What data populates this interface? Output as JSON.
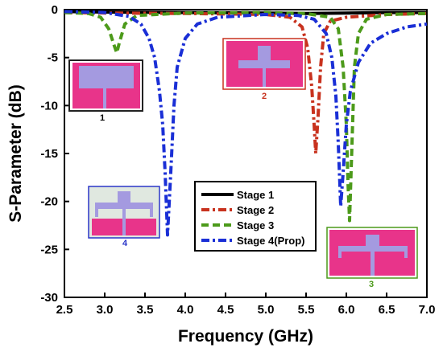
{
  "chart_data": {
    "type": "line",
    "title": "",
    "xlabel": "Frequency (GHz)",
    "ylabel": "S-Parameter (dB)",
    "xlim": [
      2.5,
      7.0
    ],
    "ylim": [
      -30,
      0
    ],
    "xticks": [
      "2.5",
      "3.0",
      "3.5",
      "4.0",
      "4.5",
      "5.0",
      "5.5",
      "6.0",
      "6.5",
      "7.0"
    ],
    "yticks": [
      "0",
      "-5",
      "-10",
      "-15",
      "-20",
      "-25",
      "-30"
    ],
    "grid": false,
    "legend_position": "lower-center",
    "series": [
      {
        "name": "Stage 1",
        "color": "#000000",
        "style": "solid",
        "points": [
          [
            2.5,
            -0.2
          ],
          [
            3.0,
            -0.25
          ],
          [
            4.0,
            -0.3
          ],
          [
            5.0,
            -0.35
          ],
          [
            5.5,
            -0.4
          ],
          [
            6.0,
            -0.35
          ],
          [
            6.5,
            -0.3
          ],
          [
            7.0,
            -0.3
          ]
        ]
      },
      {
        "name": "Stage 2",
        "color": "#c8321e",
        "style": "dash-dot",
        "points": [
          [
            2.5,
            -0.3
          ],
          [
            3.0,
            -0.35
          ],
          [
            4.0,
            -0.4
          ],
          [
            5.0,
            -0.5
          ],
          [
            5.3,
            -0.8
          ],
          [
            5.45,
            -1.8
          ],
          [
            5.52,
            -4.0
          ],
          [
            5.57,
            -8.0
          ],
          [
            5.6,
            -12.0
          ],
          [
            5.62,
            -15.0
          ],
          [
            5.65,
            -11.0
          ],
          [
            5.68,
            -6.0
          ],
          [
            5.72,
            -2.5
          ],
          [
            5.8,
            -1.2
          ],
          [
            6.0,
            -0.8
          ],
          [
            6.5,
            -0.5
          ],
          [
            7.0,
            -0.4
          ]
        ]
      },
      {
        "name": "Stage 3",
        "color": "#4c9a1a",
        "style": "dash",
        "points": [
          [
            2.5,
            -0.3
          ],
          [
            2.8,
            -0.4
          ],
          [
            2.95,
            -0.8
          ],
          [
            3.05,
            -2.0
          ],
          [
            3.12,
            -3.8
          ],
          [
            3.15,
            -4.5
          ],
          [
            3.18,
            -3.5
          ],
          [
            3.25,
            -1.5
          ],
          [
            3.4,
            -0.6
          ],
          [
            4.0,
            -0.35
          ],
          [
            5.0,
            -0.3
          ],
          [
            5.5,
            -0.4
          ],
          [
            5.8,
            -0.8
          ],
          [
            5.9,
            -2.0
          ],
          [
            5.96,
            -6.0
          ],
          [
            6.0,
            -12.0
          ],
          [
            6.02,
            -18.0
          ],
          [
            6.04,
            -22.0
          ],
          [
            6.07,
            -14.0
          ],
          [
            6.1,
            -6.0
          ],
          [
            6.15,
            -2.5
          ],
          [
            6.25,
            -1.0
          ],
          [
            6.5,
            -0.5
          ],
          [
            7.0,
            -0.4
          ]
        ]
      },
      {
        "name": "Stage 4(Prop)",
        "color": "#1a2fd6",
        "style": "dash-dot",
        "points": [
          [
            2.5,
            -0.2
          ],
          [
            3.0,
            -0.3
          ],
          [
            3.3,
            -0.7
          ],
          [
            3.45,
            -1.5
          ],
          [
            3.55,
            -3.0
          ],
          [
            3.62,
            -5.0
          ],
          [
            3.68,
            -8.5
          ],
          [
            3.72,
            -12.0
          ],
          [
            3.75,
            -17.0
          ],
          [
            3.78,
            -23.5
          ],
          [
            3.82,
            -17.0
          ],
          [
            3.86,
            -10.0
          ],
          [
            3.9,
            -6.0
          ],
          [
            4.0,
            -3.0
          ],
          [
            4.15,
            -1.5
          ],
          [
            4.4,
            -0.8
          ],
          [
            5.0,
            -0.5
          ],
          [
            5.4,
            -0.6
          ],
          [
            5.6,
            -1.0
          ],
          [
            5.75,
            -2.5
          ],
          [
            5.82,
            -5.0
          ],
          [
            5.87,
            -9.0
          ],
          [
            5.9,
            -14.0
          ],
          [
            5.93,
            -20.5
          ],
          [
            5.96,
            -17.0
          ],
          [
            6.0,
            -12.0
          ],
          [
            6.05,
            -8.5
          ],
          [
            6.15,
            -5.5
          ],
          [
            6.3,
            -3.5
          ],
          [
            6.5,
            -2.5
          ],
          [
            6.75,
            -1.8
          ],
          [
            7.0,
            -1.5
          ]
        ]
      }
    ],
    "insets": [
      {
        "caption": "1",
        "frame_color": "#222222",
        "caption_color": "#000000"
      },
      {
        "caption": "2",
        "frame_color": "#c8321e",
        "caption_color": "#c8321e"
      },
      {
        "caption": "4",
        "frame_color": "#2a35c8",
        "caption_color": "#2a35c8"
      },
      {
        "caption": "3",
        "frame_color": "#4c9a1a",
        "caption_color": "#4c9a1a"
      }
    ]
  }
}
